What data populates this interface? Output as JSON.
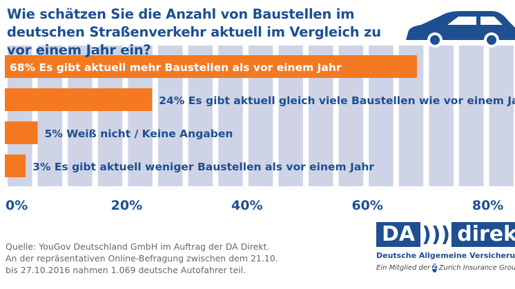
{
  "title": "Wie schätzen Sie die Anzahl von Baustellen im deutschen Straßenverkehr aktuell im Vergleich zu vor einem Jahr ein?",
  "chart_data": {
    "type": "bar",
    "orientation": "horizontal",
    "title": "Wie schätzen Sie die Anzahl von Baustellen im deutschen Straßenverkehr aktuell im Vergleich zu vor einem Jahr ein?",
    "categories": [
      "Es gibt aktuell mehr Baustellen als vor einem Jahr",
      "Es gibt aktuell gleich viele Baustellen wie vor einem Jahr",
      "Weiß nicht / Keine Angaben",
      "Es gibt aktuell weniger Baustellen als vor einem Jahr"
    ],
    "values": [
      68,
      24,
      5,
      3
    ],
    "data_labels": [
      "68%",
      "24%",
      "5%",
      "3%"
    ],
    "xlim": [
      0,
      80
    ],
    "xticks": [
      "0%",
      "20%",
      "40%",
      "60%",
      "80%"
    ],
    "xlabel": "",
    "ylabel": "",
    "bar_color": "#f47920",
    "grid_color": "#cfd3e6",
    "text_color": "#1d4f91"
  },
  "source": [
    "Quelle: YouGov Deutschland GmbH im Auftrag der DA Direkt.",
    "An der repräsentativen Online-Befragung zwischen dem 21.10.",
    "bis 27.10.2016 nahmen 1.069 deutsche Autofahrer teil."
  ],
  "logo": {
    "da": "DA",
    "direkt": "direkt",
    "subtitle": "Deutsche Allgemeine Versicherungen",
    "member": "Ein Mitglied der",
    "zurich": "Zurich Insurance Group"
  }
}
